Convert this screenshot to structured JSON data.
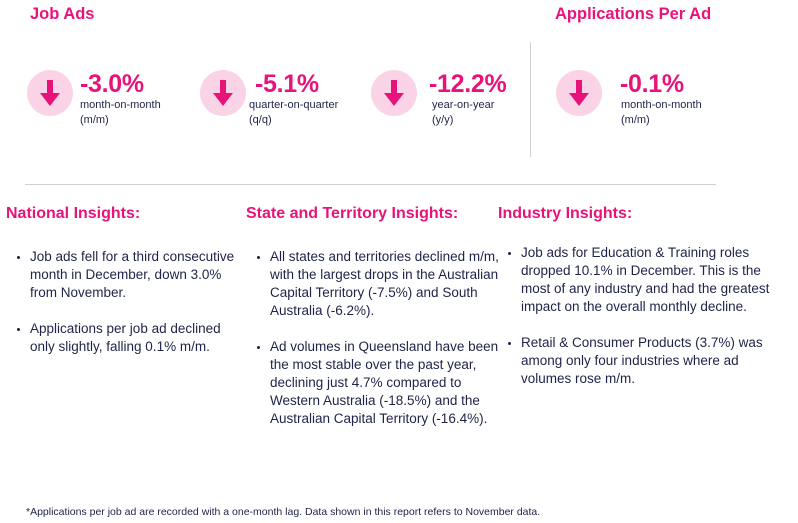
{
  "sections": {
    "job_ads_title": "Job Ads",
    "applications_title": "Applications Per Ad"
  },
  "metrics": [
    {
      "value": "-3.0%",
      "label_line1": "month-on-month",
      "label_line2": "(m/m)",
      "icon": "arrow-down-icon"
    },
    {
      "value": "-5.1%",
      "label_line1": "quarter-on-quarter",
      "label_line2": "(q/q)",
      "icon": "arrow-down-icon"
    },
    {
      "value": "-12.2%",
      "label_line1": "year-on-year",
      "label_line2": "(y/y)",
      "icon": "arrow-down-icon"
    },
    {
      "value": "-0.1%",
      "label_line1": "month-on-month",
      "label_line2": "(m/m)",
      "icon": "arrow-down-icon"
    }
  ],
  "insights": {
    "national": {
      "title": "National Insights:",
      "bullets": [
        "Job ads fell for a third consecutive month in December, down 3.0% from November.",
        "Applications per job ad declined only slightly, falling 0.1% m/m."
      ]
    },
    "state": {
      "title": "State and Territory Insights:",
      "bullets": [
        "All states and territories declined m/m, with the largest drops in the Australian Capital Territory (-7.5%) and South Australia (-6.2%).",
        "Ad volumes in Queensland have been the most stable over the past year, declining just 4.7% compared to Western Australia (-18.5%) and the Australian Capital Territory (-16.4%)."
      ]
    },
    "industry": {
      "title": "Industry Insights:",
      "bullets": [
        "Job ads for Education & Training roles dropped 10.1% in December. This is the most of any industry and had the greatest impact on the overall monthly decline.",
        "Retail & Consumer Products (3.7%) was among only four industries where ad volumes rose m/m."
      ]
    }
  },
  "footnote": "*Applications per job ad are recorded with a one-month lag. Data shown in this report refers to November data.",
  "colors": {
    "accent": "#e8137a",
    "icon_bg": "#fbd3e6",
    "text": "#1f2348"
  }
}
